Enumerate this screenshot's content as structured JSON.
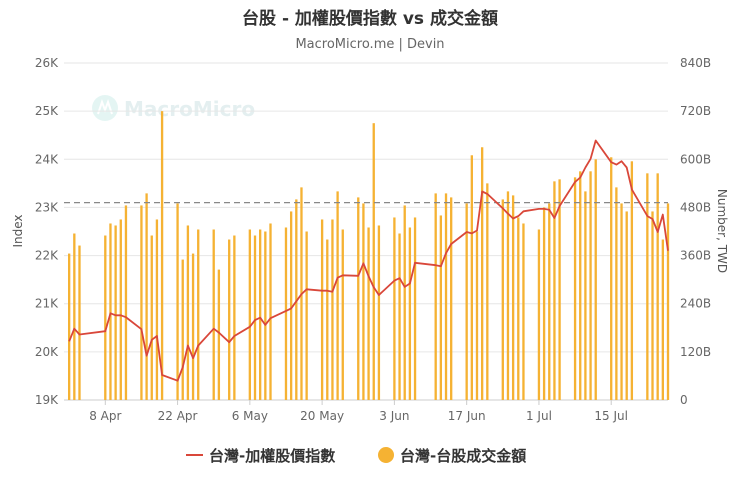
{
  "chart_data": {
    "type": "bar+line",
    "title": "台股 - 加權股價指數 vs 成交金額",
    "subtitle": "MacroMicro.me | Devin",
    "watermark": "MacroMicro",
    "ylabel_left": "Index",
    "ylabel_right": "Number, TWD",
    "left_axis": {
      "min": 19000,
      "max": 26000,
      "ticks": [
        "19K",
        "20K",
        "21K",
        "22K",
        "23K",
        "24K",
        "25K",
        "26K"
      ]
    },
    "right_axis": {
      "min": 0,
      "max": 840,
      "ticks": [
        "0",
        "120B",
        "240B",
        "360B",
        "480B",
        "600B",
        "720B",
        "840B"
      ]
    },
    "x_range": [
      "2024-03-31",
      "2024-07-26"
    ],
    "x_ticks": [
      {
        "date": "2024-04-08",
        "label": "8 Apr"
      },
      {
        "date": "2024-04-22",
        "label": "22 Apr"
      },
      {
        "date": "2024-05-06",
        "label": "6 May"
      },
      {
        "date": "2024-05-20",
        "label": "20 May"
      },
      {
        "date": "2024-06-03",
        "label": "3 Jun"
      },
      {
        "date": "2024-06-17",
        "label": "17 Jun"
      },
      {
        "date": "2024-07-01",
        "label": "1 Jul"
      },
      {
        "date": "2024-07-15",
        "label": "15 Jul"
      }
    ],
    "reference_line": {
      "axis": "left",
      "value": 23100,
      "style": "dashed"
    },
    "grid": true,
    "legend": {
      "position": "bottom"
    },
    "series": [
      {
        "name": "台灣-加權股價指數",
        "type": "line",
        "axis": "left",
        "color": "#d9473a",
        "points": [
          [
            "2024-04-01",
            20220
          ],
          [
            "2024-04-02",
            20480
          ],
          [
            "2024-04-03",
            20360
          ],
          [
            "2024-04-08",
            20430
          ],
          [
            "2024-04-09",
            20800
          ],
          [
            "2024-04-10",
            20760
          ],
          [
            "2024-04-11",
            20760
          ],
          [
            "2024-04-12",
            20720
          ],
          [
            "2024-04-15",
            20470
          ],
          [
            "2024-04-16",
            19920
          ],
          [
            "2024-04-17",
            20250
          ],
          [
            "2024-04-18",
            20330
          ],
          [
            "2024-04-19",
            19520
          ],
          [
            "2024-04-22",
            19400
          ],
          [
            "2024-04-23",
            19680
          ],
          [
            "2024-04-24",
            20130
          ],
          [
            "2024-04-25",
            19870
          ],
          [
            "2024-04-26",
            20130
          ],
          [
            "2024-04-29",
            20480
          ],
          [
            "2024-04-30",
            20400
          ],
          [
            "2024-05-02",
            20200
          ],
          [
            "2024-05-03",
            20330
          ],
          [
            "2024-05-06",
            20520
          ],
          [
            "2024-05-07",
            20660
          ],
          [
            "2024-05-08",
            20710
          ],
          [
            "2024-05-09",
            20560
          ],
          [
            "2024-05-10",
            20700
          ],
          [
            "2024-05-13",
            20850
          ],
          [
            "2024-05-14",
            20900
          ],
          [
            "2024-05-15",
            21050
          ],
          [
            "2024-05-16",
            21200
          ],
          [
            "2024-05-17",
            21300
          ],
          [
            "2024-05-20",
            21270
          ],
          [
            "2024-05-21",
            21270
          ],
          [
            "2024-05-22",
            21250
          ],
          [
            "2024-05-23",
            21540
          ],
          [
            "2024-05-24",
            21590
          ],
          [
            "2024-05-27",
            21580
          ],
          [
            "2024-05-28",
            21840
          ],
          [
            "2024-05-29",
            21570
          ],
          [
            "2024-05-30",
            21340
          ],
          [
            "2024-05-31",
            21180
          ],
          [
            "2024-06-03",
            21480
          ],
          [
            "2024-06-04",
            21530
          ],
          [
            "2024-06-05",
            21350
          ],
          [
            "2024-06-06",
            21420
          ],
          [
            "2024-06-07",
            21850
          ],
          [
            "2024-06-11",
            21800
          ],
          [
            "2024-06-12",
            21780
          ],
          [
            "2024-06-13",
            22050
          ],
          [
            "2024-06-14",
            22240
          ],
          [
            "2024-06-17",
            22490
          ],
          [
            "2024-06-18",
            22460
          ],
          [
            "2024-06-19",
            22520
          ],
          [
            "2024-06-20",
            23330
          ],
          [
            "2024-06-21",
            23280
          ],
          [
            "2024-06-24",
            22980
          ],
          [
            "2024-06-25",
            22870
          ],
          [
            "2024-06-26",
            22770
          ],
          [
            "2024-06-27",
            22820
          ],
          [
            "2024-06-28",
            22920
          ],
          [
            "2024-07-01",
            22970
          ],
          [
            "2024-07-02",
            22970
          ],
          [
            "2024-07-03",
            22950
          ],
          [
            "2024-07-04",
            22780
          ],
          [
            "2024-07-05",
            23030
          ],
          [
            "2024-07-08",
            23530
          ],
          [
            "2024-07-09",
            23620
          ],
          [
            "2024-07-10",
            23830
          ],
          [
            "2024-07-11",
            24010
          ],
          [
            "2024-07-12",
            24390
          ],
          [
            "2024-07-15",
            23940
          ],
          [
            "2024-07-16",
            23890
          ],
          [
            "2024-07-17",
            23960
          ],
          [
            "2024-07-18",
            23830
          ],
          [
            "2024-07-19",
            23370
          ],
          [
            "2024-07-22",
            22820
          ],
          [
            "2024-07-23",
            22760
          ],
          [
            "2024-07-24",
            22490
          ],
          [
            "2024-07-25",
            22850
          ],
          [
            "2024-07-26",
            22100
          ]
        ]
      },
      {
        "name": "台灣-台股成交金額",
        "type": "bar",
        "axis": "right",
        "color": "#f5b233",
        "points": [
          [
            "2024-04-01",
            365
          ],
          [
            "2024-04-02",
            415
          ],
          [
            "2024-04-03",
            385
          ],
          [
            "2024-04-08",
            410
          ],
          [
            "2024-04-09",
            440
          ],
          [
            "2024-04-10",
            435
          ],
          [
            "2024-04-11",
            450
          ],
          [
            "2024-04-12",
            485
          ],
          [
            "2024-04-15",
            485
          ],
          [
            "2024-04-16",
            515
          ],
          [
            "2024-04-17",
            410
          ],
          [
            "2024-04-18",
            450
          ],
          [
            "2024-04-19",
            720
          ],
          [
            "2024-04-22",
            490
          ],
          [
            "2024-04-23",
            350
          ],
          [
            "2024-04-24",
            435
          ],
          [
            "2024-04-25",
            365
          ],
          [
            "2024-04-26",
            425
          ],
          [
            "2024-04-29",
            425
          ],
          [
            "2024-04-30",
            325
          ],
          [
            "2024-05-02",
            400
          ],
          [
            "2024-05-03",
            410
          ],
          [
            "2024-05-06",
            425
          ],
          [
            "2024-05-07",
            410
          ],
          [
            "2024-05-08",
            425
          ],
          [
            "2024-05-09",
            420
          ],
          [
            "2024-05-10",
            440
          ],
          [
            "2024-05-13",
            430
          ],
          [
            "2024-05-14",
            470
          ],
          [
            "2024-05-15",
            500
          ],
          [
            "2024-05-16",
            530
          ],
          [
            "2024-05-17",
            420
          ],
          [
            "2024-05-20",
            450
          ],
          [
            "2024-05-21",
            400
          ],
          [
            "2024-05-22",
            450
          ],
          [
            "2024-05-23",
            520
          ],
          [
            "2024-05-24",
            425
          ],
          [
            "2024-05-27",
            505
          ],
          [
            "2024-05-28",
            490
          ],
          [
            "2024-05-29",
            430
          ],
          [
            "2024-05-30",
            690
          ],
          [
            "2024-05-31",
            435
          ],
          [
            "2024-06-03",
            455
          ],
          [
            "2024-06-04",
            415
          ],
          [
            "2024-06-05",
            485
          ],
          [
            "2024-06-06",
            430
          ],
          [
            "2024-06-07",
            455
          ],
          [
            "2024-06-11",
            515
          ],
          [
            "2024-06-12",
            460
          ],
          [
            "2024-06-13",
            515
          ],
          [
            "2024-06-14",
            505
          ],
          [
            "2024-06-17",
            490
          ],
          [
            "2024-06-18",
            610
          ],
          [
            "2024-06-19",
            420
          ],
          [
            "2024-06-20",
            630
          ],
          [
            "2024-06-21",
            540
          ],
          [
            "2024-06-24",
            500
          ],
          [
            "2024-06-25",
            520
          ],
          [
            "2024-06-26",
            510
          ],
          [
            "2024-06-27",
            455
          ],
          [
            "2024-06-28",
            440
          ],
          [
            "2024-07-01",
            425
          ],
          [
            "2024-07-02",
            480
          ],
          [
            "2024-07-03",
            490
          ],
          [
            "2024-07-04",
            545
          ],
          [
            "2024-07-05",
            550
          ],
          [
            "2024-07-08",
            555
          ],
          [
            "2024-07-09",
            570
          ],
          [
            "2024-07-10",
            520
          ],
          [
            "2024-07-11",
            570
          ],
          [
            "2024-07-12",
            600
          ],
          [
            "2024-07-15",
            605
          ],
          [
            "2024-07-16",
            530
          ],
          [
            "2024-07-17",
            490
          ],
          [
            "2024-07-18",
            470
          ],
          [
            "2024-07-19",
            595
          ],
          [
            "2024-07-22",
            565
          ],
          [
            "2024-07-23",
            470
          ],
          [
            "2024-07-24",
            565
          ],
          [
            "2024-07-25",
            400
          ],
          [
            "2024-07-26",
            490
          ]
        ]
      }
    ]
  }
}
